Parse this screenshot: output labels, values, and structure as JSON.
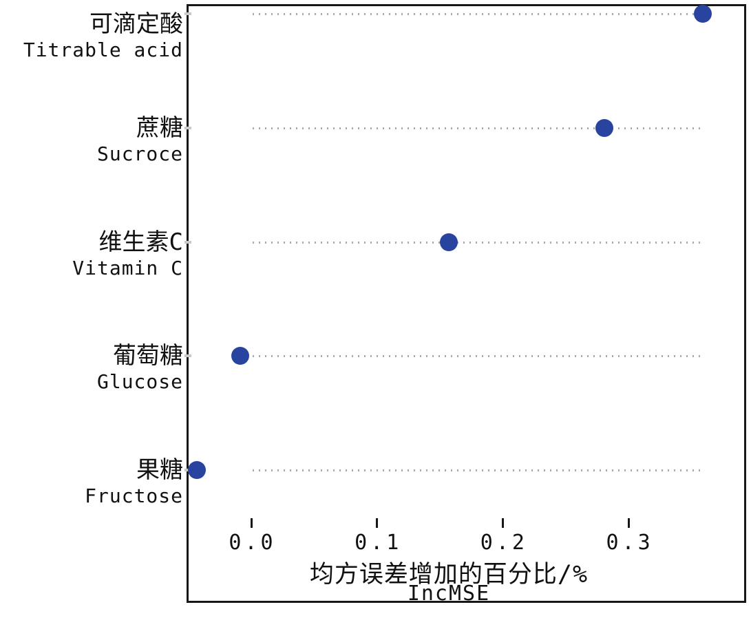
{
  "chart_data": {
    "type": "scatter",
    "subtype": "dotchart-variable-importance",
    "title": "",
    "xlabel_cn": "均方误差增加的百分比/%",
    "xlabel_en": "IncMSE",
    "ylabel": "",
    "categories": [
      {
        "label_cn": "可滴定酸",
        "label_en": "Titrable acid",
        "value": 0.359
      },
      {
        "label_cn": "蔗糖",
        "label_en": "Sucroce",
        "value": 0.281
      },
      {
        "label_cn": "维生素C",
        "label_en": "Vitamin C",
        "value": 0.157
      },
      {
        "label_cn": "葡萄糖",
        "label_en": "Glucose",
        "value": -0.009
      },
      {
        "label_cn": "果糖",
        "label_en": "Fructose",
        "value": -0.043
      }
    ],
    "x_ticks": [
      0.0,
      0.1,
      0.2,
      0.3
    ],
    "x_tick_labels": [
      "0.0",
      "0.1",
      "0.2",
      "0.3"
    ],
    "xlim": [
      -0.05,
      0.393
    ],
    "grid": {
      "style": "dotted",
      "color": "#a9a9a9",
      "x_start": 0.001,
      "x_end": 0.3575
    },
    "legend": "none",
    "point_color": "#28449f",
    "marker": "filled-circle",
    "frame_color": "#161616"
  }
}
